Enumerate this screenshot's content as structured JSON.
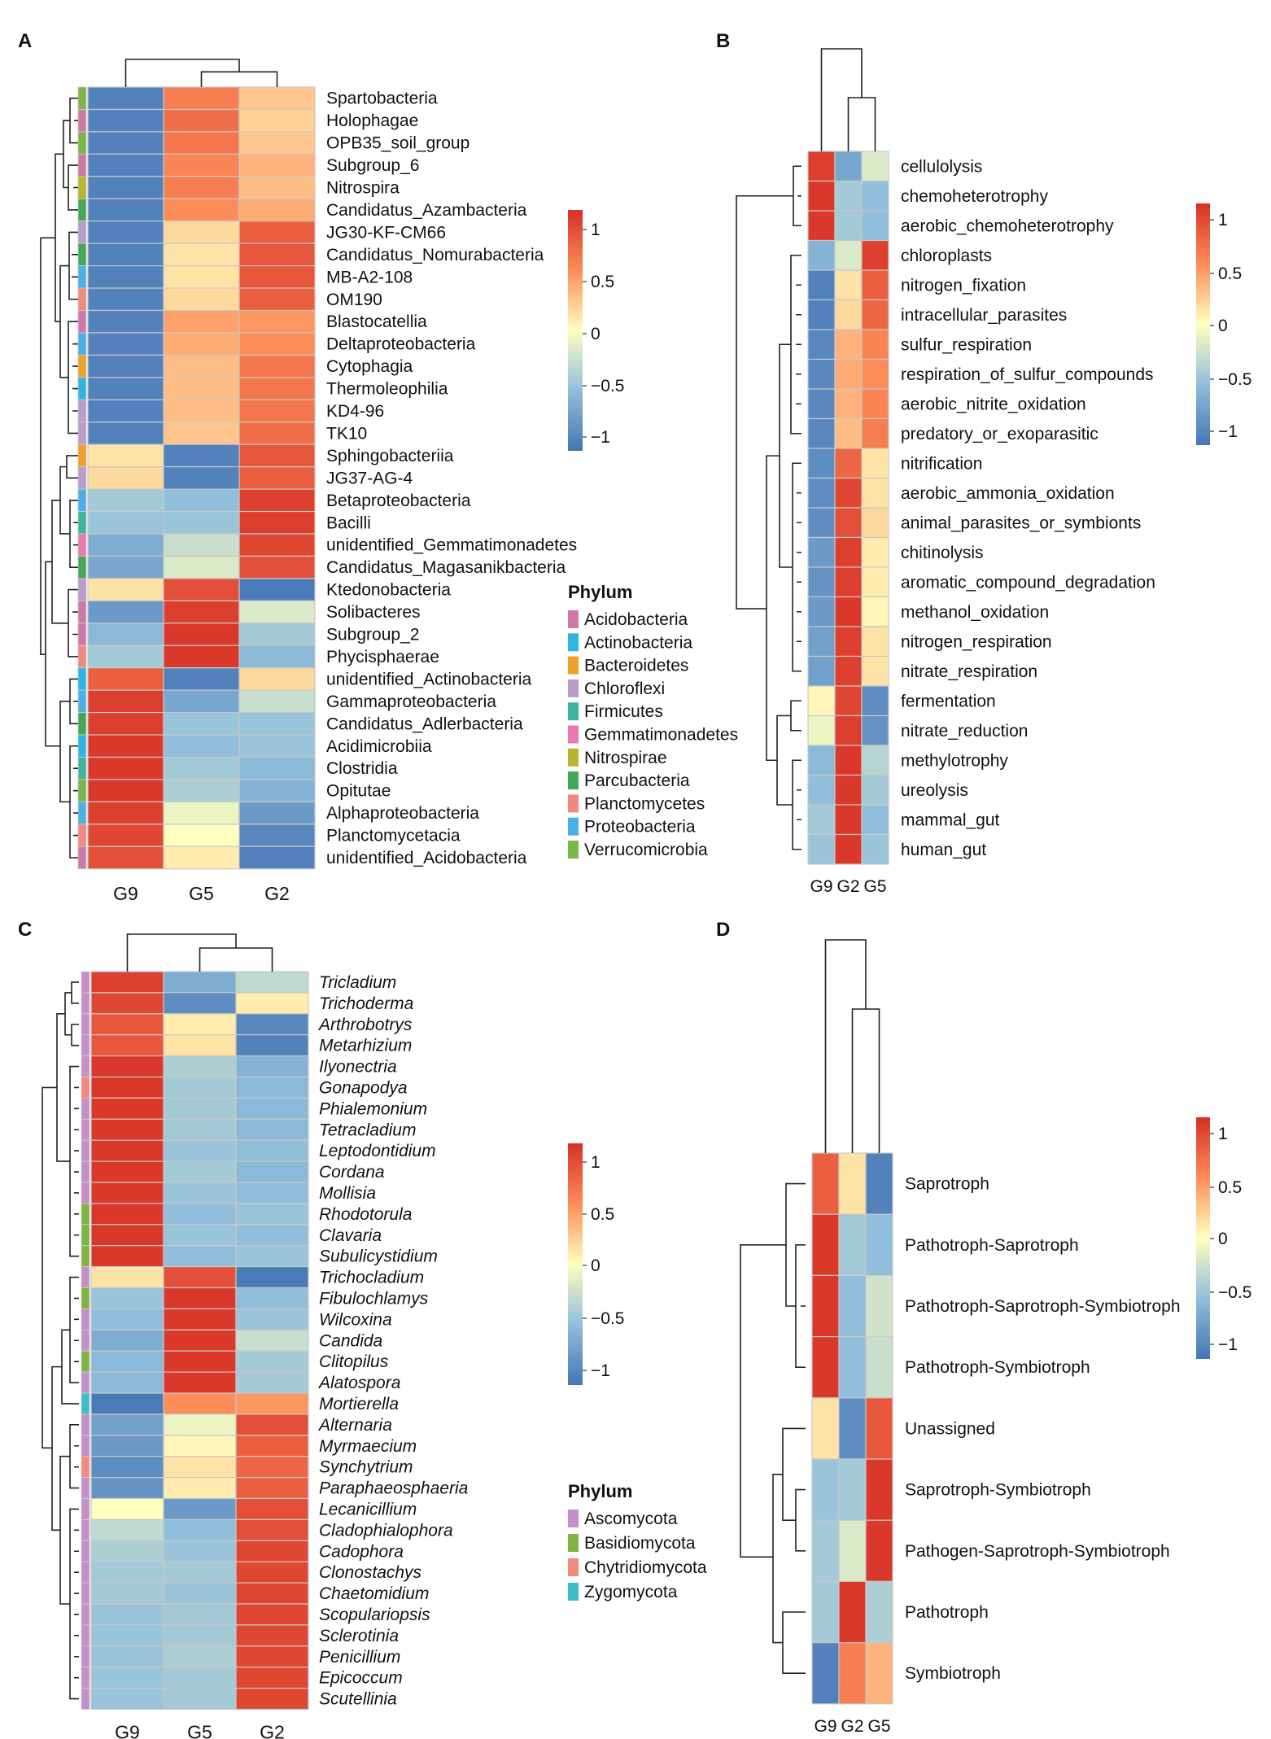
{
  "chart_data": [
    {
      "panel": "A",
      "type": "heatmap",
      "columns": [
        "G9",
        "G5",
        "G2"
      ],
      "rows": [
        "Spartobacteria",
        "Holophagae",
        "OPB35_soil_group",
        "Subgroup_6",
        "Nitrospira",
        "Candidatus_Azambacteria",
        "JG30-KF-CM66",
        "Candidatus_Nomurabacteria",
        "MB-A2-108",
        "OM190",
        "Blastocatellia",
        "Deltaproteobacteria",
        "Cytophagia",
        "Thermoleophilia",
        "KD4-96",
        "TK10",
        "Sphingobacteriia",
        "JG37-AG-4",
        "Betaproteobacteria",
        "Bacilli",
        "unidentified_Gemmatimonadetes",
        "Candidatus_Magasanikbacteria",
        "Ktedonobacteria",
        "Solibacteres",
        "Subgroup_2",
        "Phycisphaerae",
        "unidentified_Actinobacteria",
        "Gammaproteobacteria",
        "Candidatus_Adlerbacteria",
        "Acidimicrobiia",
        "Clostridia",
        "Opitutae",
        "Alphaproteobacteria",
        "Planctomycetacia",
        "unidentified_Acidobacteria"
      ],
      "row_phylum": [
        "Verrucomicrobia",
        "Acidobacteria",
        "Verrucomicrobia",
        "Acidobacteria",
        "Nitrospirae",
        "Parcubacteria",
        "Chloroflexi",
        "Parcubacteria",
        "Proteobacteria",
        "Planctomycetes",
        "Acidobacteria",
        "Proteobacteria",
        "Bacteroidetes",
        "Actinobacteria",
        "Chloroflexi",
        "Chloroflexi",
        "Bacteroidetes",
        "Chloroflexi",
        "Proteobacteria",
        "Firmicutes",
        "Gemmatimonadetes",
        "Parcubacteria",
        "Chloroflexi",
        "Acidobacteria",
        "Acidobacteria",
        "Planctomycetes",
        "Actinobacteria",
        "Proteobacteria",
        "Parcubacteria",
        "Actinobacteria",
        "Firmicutes",
        "Verrucomicrobia",
        "Proteobacteria",
        "Planctomycetes",
        "Acidobacteria"
      ],
      "values": [
        [
          -1.1,
          0.7,
          0.3
        ],
        [
          -1.1,
          0.8,
          0.25
        ],
        [
          -1.1,
          0.75,
          0.3
        ],
        [
          -1.1,
          0.65,
          0.4
        ],
        [
          -1.1,
          0.7,
          0.35
        ],
        [
          -1.1,
          0.6,
          0.45
        ],
        [
          -1.1,
          0.2,
          0.9
        ],
        [
          -1.1,
          0.15,
          0.95
        ],
        [
          -1.1,
          0.15,
          0.95
        ],
        [
          -1.1,
          0.2,
          0.9
        ],
        [
          -1.1,
          0.5,
          0.55
        ],
        [
          -1.1,
          0.45,
          0.6
        ],
        [
          -1.1,
          0.35,
          0.75
        ],
        [
          -1.1,
          0.35,
          0.75
        ],
        [
          -1.1,
          0.35,
          0.75
        ],
        [
          -1.1,
          0.3,
          0.8
        ],
        [
          0.15,
          -1.1,
          0.95
        ],
        [
          0.2,
          -1.1,
          0.9
        ],
        [
          -0.5,
          -0.6,
          1.1
        ],
        [
          -0.55,
          -0.55,
          1.1
        ],
        [
          -0.75,
          -0.3,
          1.05
        ],
        [
          -0.8,
          -0.2,
          1.0
        ],
        [
          0.15,
          1.0,
          -1.15
        ],
        [
          -0.9,
          1.1,
          -0.2
        ],
        [
          -0.65,
          1.15,
          -0.5
        ],
        [
          -0.5,
          1.15,
          -0.65
        ],
        [
          0.9,
          -1.1,
          0.2
        ],
        [
          1.1,
          -0.8,
          -0.3
        ],
        [
          1.1,
          -0.55,
          -0.55
        ],
        [
          1.15,
          -0.6,
          -0.55
        ],
        [
          1.15,
          -0.5,
          -0.65
        ],
        [
          1.15,
          -0.45,
          -0.7
        ],
        [
          1.1,
          -0.1,
          -0.9
        ],
        [
          1.05,
          0.0,
          -1.05
        ],
        [
          1.0,
          0.1,
          -1.1
        ]
      ],
      "legend_ticks": [
        "1",
        "0.5",
        "0",
        "−0.5",
        "−1"
      ],
      "legend_title": "Phylum",
      "legend_items": [
        "Acidobacteria",
        "Actinobacteria",
        "Bacteroidetes",
        "Chloroflexi",
        "Firmicutes",
        "Gemmatimonadetes",
        "Nitrospirae",
        "Parcubacteria",
        "Planctomycetes",
        "Proteobacteria",
        "Verrucomicrobia"
      ],
      "legend_colors": [
        "#cc79a7",
        "#2fb4e3",
        "#f0a12a",
        "#b99ccc",
        "#3eb59d",
        "#e87ab1",
        "#b8b62c",
        "#45a756",
        "#f08a7e",
        "#4cb0e8",
        "#7ab648"
      ]
    },
    {
      "panel": "B",
      "type": "heatmap",
      "columns": [
        "G9",
        "G2",
        "G5"
      ],
      "rows": [
        "cellulolysis",
        "chemoheterotrophy",
        "aerobic_chemoheterotrophy",
        "chloroplasts",
        "nitrogen_fixation",
        "intracellular_parasites",
        "sulfur_respiration",
        "respiration_of_sulfur_compounds",
        "aerobic_nitrite_oxidation",
        "predatory_or_exoparasitic",
        "nitrification",
        "aerobic_ammonia_oxidation",
        "animal_parasites_or_symbionts",
        "chitinolysis",
        "aromatic_compound_degradation",
        "methanol_oxidation",
        "nitrogen_respiration",
        "nitrate_respiration",
        "fermentation",
        "nitrate_reduction",
        "methylotrophy",
        "ureolysis",
        "mammal_gut",
        "human_gut"
      ],
      "values": [
        [
          1.1,
          -0.8,
          -0.2
        ],
        [
          1.15,
          -0.5,
          -0.6
        ],
        [
          1.15,
          -0.5,
          -0.6
        ],
        [
          -0.7,
          -0.2,
          1.1
        ],
        [
          -1.1,
          0.15,
          0.9
        ],
        [
          -1.1,
          0.2,
          0.85
        ],
        [
          -1.05,
          0.4,
          0.65
        ],
        [
          -1.05,
          0.45,
          0.6
        ],
        [
          -1.05,
          0.4,
          0.65
        ],
        [
          -1.05,
          0.35,
          0.7
        ],
        [
          -1.0,
          0.85,
          0.15
        ],
        [
          -1.0,
          1.05,
          0.15
        ],
        [
          -1.0,
          1.0,
          0.2
        ],
        [
          -0.9,
          1.1,
          0.1
        ],
        [
          -0.95,
          1.1,
          0.1
        ],
        [
          -0.9,
          1.15,
          0.05
        ],
        [
          -0.85,
          1.1,
          0.15
        ],
        [
          -0.85,
          1.1,
          0.15
        ],
        [
          0.05,
          1.05,
          -1.0
        ],
        [
          -0.1,
          1.1,
          -0.95
        ],
        [
          -0.65,
          1.15,
          -0.4
        ],
        [
          -0.6,
          1.15,
          -0.5
        ],
        [
          -0.5,
          1.15,
          -0.6
        ],
        [
          -0.55,
          1.15,
          -0.55
        ]
      ],
      "legend_ticks": [
        "1",
        "0.5",
        "0",
        "−0.5",
        "−1"
      ]
    },
    {
      "panel": "C",
      "type": "heatmap",
      "columns": [
        "G9",
        "G5",
        "G2"
      ],
      "rows": [
        "Tricladium",
        "Trichoderma",
        "Arthrobotrys",
        "Metarhizium",
        "Ilyonectria",
        "Gonapodya",
        "Phialemonium",
        "Tetracladium",
        "Leptodontidium",
        "Cordana",
        "Mollisia",
        "Rhodotorula",
        "Clavaria",
        "Subulicystidium",
        "Trichocladium",
        "Fibulochlamys",
        "Wilcoxina",
        "Candida",
        "Clitopilus",
        "Alatospora",
        "Mortierella",
        "Alternaria",
        "Myrmaecium",
        "Synchytrium",
        "Paraphaeosphaeria",
        "Lecanicillium",
        "Cladophialophora",
        "Cadophora",
        "Clonostachys",
        "Chaetomidium",
        "Scopulariopsis",
        "Sclerotinia",
        "Penicillium",
        "Epicoccum",
        "Scutellinia"
      ],
      "row_phylum": [
        "Ascomycota",
        "Ascomycota",
        "Ascomycota",
        "Ascomycota",
        "Ascomycota",
        "Chytridiomycota",
        "Ascomycota",
        "Ascomycota",
        "Ascomycota",
        "Ascomycota",
        "Ascomycota",
        "Basidiomycota",
        "Basidiomycota",
        "Basidiomycota",
        "Ascomycota",
        "Basidiomycota",
        "Ascomycota",
        "Ascomycota",
        "Basidiomycota",
        "Ascomycota",
        "Zygomycota",
        "Ascomycota",
        "Ascomycota",
        "Chytridiomycota",
        "Ascomycota",
        "Ascomycota",
        "Ascomycota",
        "Ascomycota",
        "Ascomycota",
        "Ascomycota",
        "Ascomycota",
        "Ascomycota",
        "Ascomycota",
        "Ascomycota",
        "Ascomycota"
      ],
      "values": [
        [
          1.1,
          -0.75,
          -0.35
        ],
        [
          1.05,
          -1.0,
          0.1
        ],
        [
          0.95,
          0.1,
          -1.05
        ],
        [
          0.95,
          0.15,
          -1.1
        ],
        [
          1.15,
          -0.45,
          -0.7
        ],
        [
          1.15,
          -0.5,
          -0.65
        ],
        [
          1.15,
          -0.5,
          -0.65
        ],
        [
          1.15,
          -0.5,
          -0.65
        ],
        [
          1.15,
          -0.55,
          -0.6
        ],
        [
          1.15,
          -0.5,
          -0.65
        ],
        [
          1.15,
          -0.55,
          -0.6
        ],
        [
          1.15,
          -0.6,
          -0.55
        ],
        [
          1.15,
          -0.55,
          -0.6
        ],
        [
          1.15,
          -0.6,
          -0.55
        ],
        [
          0.15,
          1.0,
          -1.15
        ],
        [
          -0.55,
          1.15,
          -0.6
        ],
        [
          -0.6,
          1.15,
          -0.55
        ],
        [
          -0.75,
          1.15,
          -0.3
        ],
        [
          -0.65,
          1.15,
          -0.5
        ],
        [
          -0.65,
          1.15,
          -0.5
        ],
        [
          -1.15,
          0.6,
          0.55
        ],
        [
          -0.85,
          -0.1,
          1.0
        ],
        [
          -0.9,
          0.05,
          0.9
        ],
        [
          -1.0,
          0.15,
          0.85
        ],
        [
          -0.95,
          0.1,
          0.9
        ],
        [
          0.0,
          -0.9,
          1.0
        ],
        [
          -0.35,
          -0.6,
          1.0
        ],
        [
          -0.45,
          -0.55,
          1.05
        ],
        [
          -0.5,
          -0.5,
          1.05
        ],
        [
          -0.5,
          -0.55,
          1.05
        ],
        [
          -0.55,
          -0.5,
          1.05
        ],
        [
          -0.55,
          -0.5,
          1.05
        ],
        [
          -0.55,
          -0.45,
          1.05
        ],
        [
          -0.55,
          -0.5,
          1.05
        ],
        [
          -0.55,
          -0.5,
          1.05
        ]
      ],
      "legend_ticks": [
        "1",
        "0.5",
        "0",
        "−0.5",
        "−1"
      ],
      "legend_title": "Phylum",
      "legend_items": [
        "Ascomycota",
        "Basidiomycota",
        "Chytridiomycota",
        "Zygomycota"
      ],
      "legend_colors": [
        "#c58fc9",
        "#7fb443",
        "#f28a80",
        "#3fbcc8"
      ]
    },
    {
      "panel": "D",
      "type": "heatmap",
      "columns": [
        "G9",
        "G2",
        "G5"
      ],
      "rows": [
        "Saprotroph",
        "Pathotroph-Saprotroph",
        "Pathotroph-Saprotroph-Symbiotroph",
        "Pathotroph-Symbiotroph",
        "Unassigned",
        "Saprotroph-Symbiotroph",
        "Pathogen-Saprotroph-Symbiotroph",
        "Pathotroph",
        "Symbiotroph"
      ],
      "values": [
        [
          0.9,
          0.15,
          -1.1
        ],
        [
          1.15,
          -0.5,
          -0.6
        ],
        [
          1.15,
          -0.6,
          -0.25
        ],
        [
          1.15,
          -0.6,
          -0.3
        ],
        [
          0.15,
          -1.0,
          0.95
        ],
        [
          -0.55,
          -0.5,
          1.15
        ],
        [
          -0.5,
          -0.2,
          1.15
        ],
        [
          -0.5,
          1.15,
          -0.45
        ],
        [
          -1.1,
          0.7,
          0.4
        ]
      ],
      "legend_ticks": [
        "1",
        "0.5",
        "0",
        "−0.5",
        "−1"
      ]
    }
  ]
}
